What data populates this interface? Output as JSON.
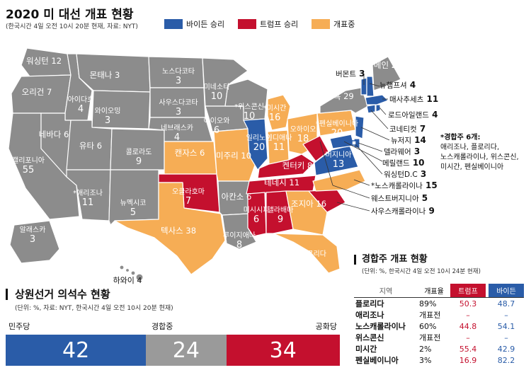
{
  "header": {
    "title": "2020 미 대선 개표 현황",
    "subtitle": "(한국시간 4일 오전 10시 20분 현재, 자료: NYT)"
  },
  "legend": [
    {
      "label": "바이든 승리",
      "color": "#2a5ca8"
    },
    {
      "label": "트럼프 승리",
      "color": "#c4102e"
    },
    {
      "label": "개표중",
      "color": "#f6ad55"
    }
  ],
  "colors": {
    "biden": "#2a5ca8",
    "trump": "#c4102e",
    "counting": "#f6ad55",
    "uncalled": "#8c8c8c"
  },
  "map_labels": [
    {
      "name": "워싱턴",
      "ev": "12"
    },
    {
      "name": "오리건",
      "ev": "7"
    },
    {
      "name": "캘리포니아",
      "ev": "55"
    },
    {
      "name": "아이다호",
      "ev": "4"
    },
    {
      "name": "네바다",
      "ev": "6"
    },
    {
      "name": "몬태나",
      "ev": "3"
    },
    {
      "name": "와이오밍",
      "ev": "3"
    },
    {
      "name": "유타",
      "ev": "6"
    },
    {
      "name": "*애리조나",
      "ev": "11"
    },
    {
      "name": "콜로라도",
      "ev": "9"
    },
    {
      "name": "뉴멕시코",
      "ev": "5"
    },
    {
      "name": "노스다코타",
      "ev": "3"
    },
    {
      "name": "사우스다코타",
      "ev": "3"
    },
    {
      "name": "네브래스카",
      "ev": "4"
    },
    {
      "name": "캔자스",
      "ev": "6"
    },
    {
      "name": "오클라호마",
      "ev": "7"
    },
    {
      "name": "텍사스",
      "ev": "38"
    },
    {
      "name": "미네소타",
      "ev": "10"
    },
    {
      "name": "아이오와",
      "ev": "6"
    },
    {
      "name": "미주리",
      "ev": "10"
    },
    {
      "name": "아칸소",
      "ev": "6"
    },
    {
      "name": "루이지애나",
      "ev": "8"
    },
    {
      "name": "*위스콘신",
      "ev": "10"
    },
    {
      "name": "일리노이",
      "ev": "20"
    },
    {
      "name": "*미시간",
      "ev": "16"
    },
    {
      "name": "인디애나",
      "ev": "11"
    },
    {
      "name": "오하이오",
      "ev": "18"
    },
    {
      "name": "켄터키",
      "ev": "8"
    },
    {
      "name": "테네시",
      "ev": "11"
    },
    {
      "name": "미시시피",
      "ev": "6"
    },
    {
      "name": "앨라배마",
      "ev": "9"
    },
    {
      "name": "조지아",
      "ev": "16"
    },
    {
      "name": "*플로리다",
      "ev": "29"
    },
    {
      "name": "*펜실베이니아",
      "ev": "20"
    },
    {
      "name": "버지니아",
      "ev": "13"
    },
    {
      "name": "뉴욕",
      "ev": "29"
    },
    {
      "name": "메인",
      "ev": "2"
    },
    {
      "name": "알래스카",
      "ev": "3"
    },
    {
      "name": "하와이",
      "ev": "4"
    }
  ],
  "east_labels": [
    {
      "name": "버몬트",
      "ev": "3"
    },
    {
      "name": "뉴햄프셔",
      "ev": "4"
    },
    {
      "name": "매사추세츠",
      "ev": "11"
    },
    {
      "name": "로드아일랜드",
      "ev": "4"
    },
    {
      "name": "코네티컷",
      "ev": "7"
    },
    {
      "name": "뉴저지",
      "ev": "14"
    },
    {
      "name": "델라웨어",
      "ev": "3"
    },
    {
      "name": "메릴랜드",
      "ev": "10"
    },
    {
      "name": "워싱턴D.C",
      "ev": "3"
    },
    {
      "name": "*노스캐롤라이나",
      "ev": "15"
    },
    {
      "name": "웨스트버지니아",
      "ev": "5"
    },
    {
      "name": "사우스캐롤라이나",
      "ev": "9"
    }
  ],
  "note": {
    "title": "*경합주 6개:",
    "lines": [
      "애리조나, 플로리다,",
      "노스캐롤라이나, 위스콘신,",
      "미시간, 펜실베이니아"
    ]
  },
  "senate": {
    "title": "상원선거 의석수 현황",
    "subtitle": "(단위: %, 자료: NYT, 한국시간 4일 오전 10시 20분 현재)",
    "dem_label": "민주당",
    "mid_label": "경합중",
    "rep_label": "공화당",
    "dem": "42",
    "mid": "24",
    "rep": "34",
    "dem_value": 42,
    "mid_value": 24,
    "rep_value": 34
  },
  "swing": {
    "title": "경합주 개표 현황",
    "subtitle": "(단위: %, 한국시간 4일 오전 10시 24분 현재)",
    "headers": {
      "region": "지역",
      "rate": "개표율",
      "trump": "트럼프",
      "biden": "바이든"
    },
    "rows": [
      {
        "name": "플로리다",
        "rate": "89%",
        "trump": "50.3",
        "biden": "48.7"
      },
      {
        "name": "애리조나",
        "rate": "개표전",
        "trump": "–",
        "biden": "–"
      },
      {
        "name": "노스캐롤라이나",
        "rate": "60%",
        "trump": "44.8",
        "biden": "54.1"
      },
      {
        "name": "위스콘신",
        "rate": "개표전",
        "trump": "–",
        "biden": "–"
      },
      {
        "name": "미시간",
        "rate": "2%",
        "trump": "55.4",
        "biden": "42.9"
      },
      {
        "name": "펜실베이니아",
        "rate": "3%",
        "trump": "16.9",
        "biden": "82.2"
      }
    ]
  }
}
